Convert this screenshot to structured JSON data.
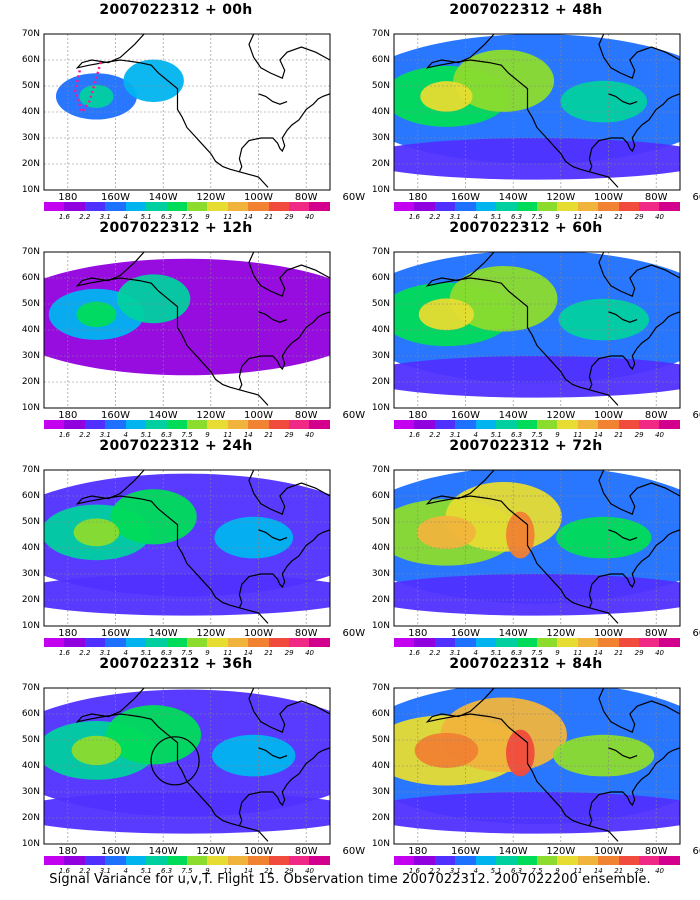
{
  "caption": "Signal Variance for u,v,T. Flight 15. Observation time 2007022312. 2007022200 ensemble.",
  "lat_labels": [
    "70N",
    "60N",
    "50N",
    "40N",
    "30N",
    "20N",
    "10N"
  ],
  "lon_labels": [
    "180",
    "160W",
    "140W",
    "120W",
    "100W",
    "80W",
    "60W"
  ],
  "colorbar": {
    "labels": [
      "1.6",
      "2.2",
      "3.1",
      "4",
      "5.1",
      "6.3",
      "7.5",
      "9",
      "11",
      "14",
      "21",
      "29",
      "40"
    ],
    "colors": [
      "#c400f0",
      "#9100de",
      "#5030ff",
      "#1e70ff",
      "#00b4f0",
      "#00d0a0",
      "#00dc5a",
      "#8cdc2d",
      "#e6dc32",
      "#f0b43c",
      "#f08232",
      "#f04b3c",
      "#f02886",
      "#d2008c"
    ]
  },
  "panels": [
    {
      "title": "2007022312 + 00h",
      "intensity": 0.15,
      "flight_track": true,
      "circle": false
    },
    {
      "title": "2007022312 + 12h",
      "intensity": 0.3,
      "flight_track": false,
      "circle": false
    },
    {
      "title": "2007022312 + 24h",
      "intensity": 0.45,
      "flight_track": false,
      "circle": false
    },
    {
      "title": "2007022312 + 36h",
      "intensity": 0.55,
      "flight_track": false,
      "circle": true
    },
    {
      "title": "2007022312 + 48h",
      "intensity": 0.62,
      "flight_track": false,
      "circle": false
    },
    {
      "title": "2007022312 + 60h",
      "intensity": 0.7,
      "flight_track": false,
      "circle": false
    },
    {
      "title": "2007022312 + 72h",
      "intensity": 0.8,
      "flight_track": false,
      "circle": false
    },
    {
      "title": "2007022312 + 84h",
      "intensity": 0.92,
      "flight_track": false,
      "circle": false
    }
  ]
}
